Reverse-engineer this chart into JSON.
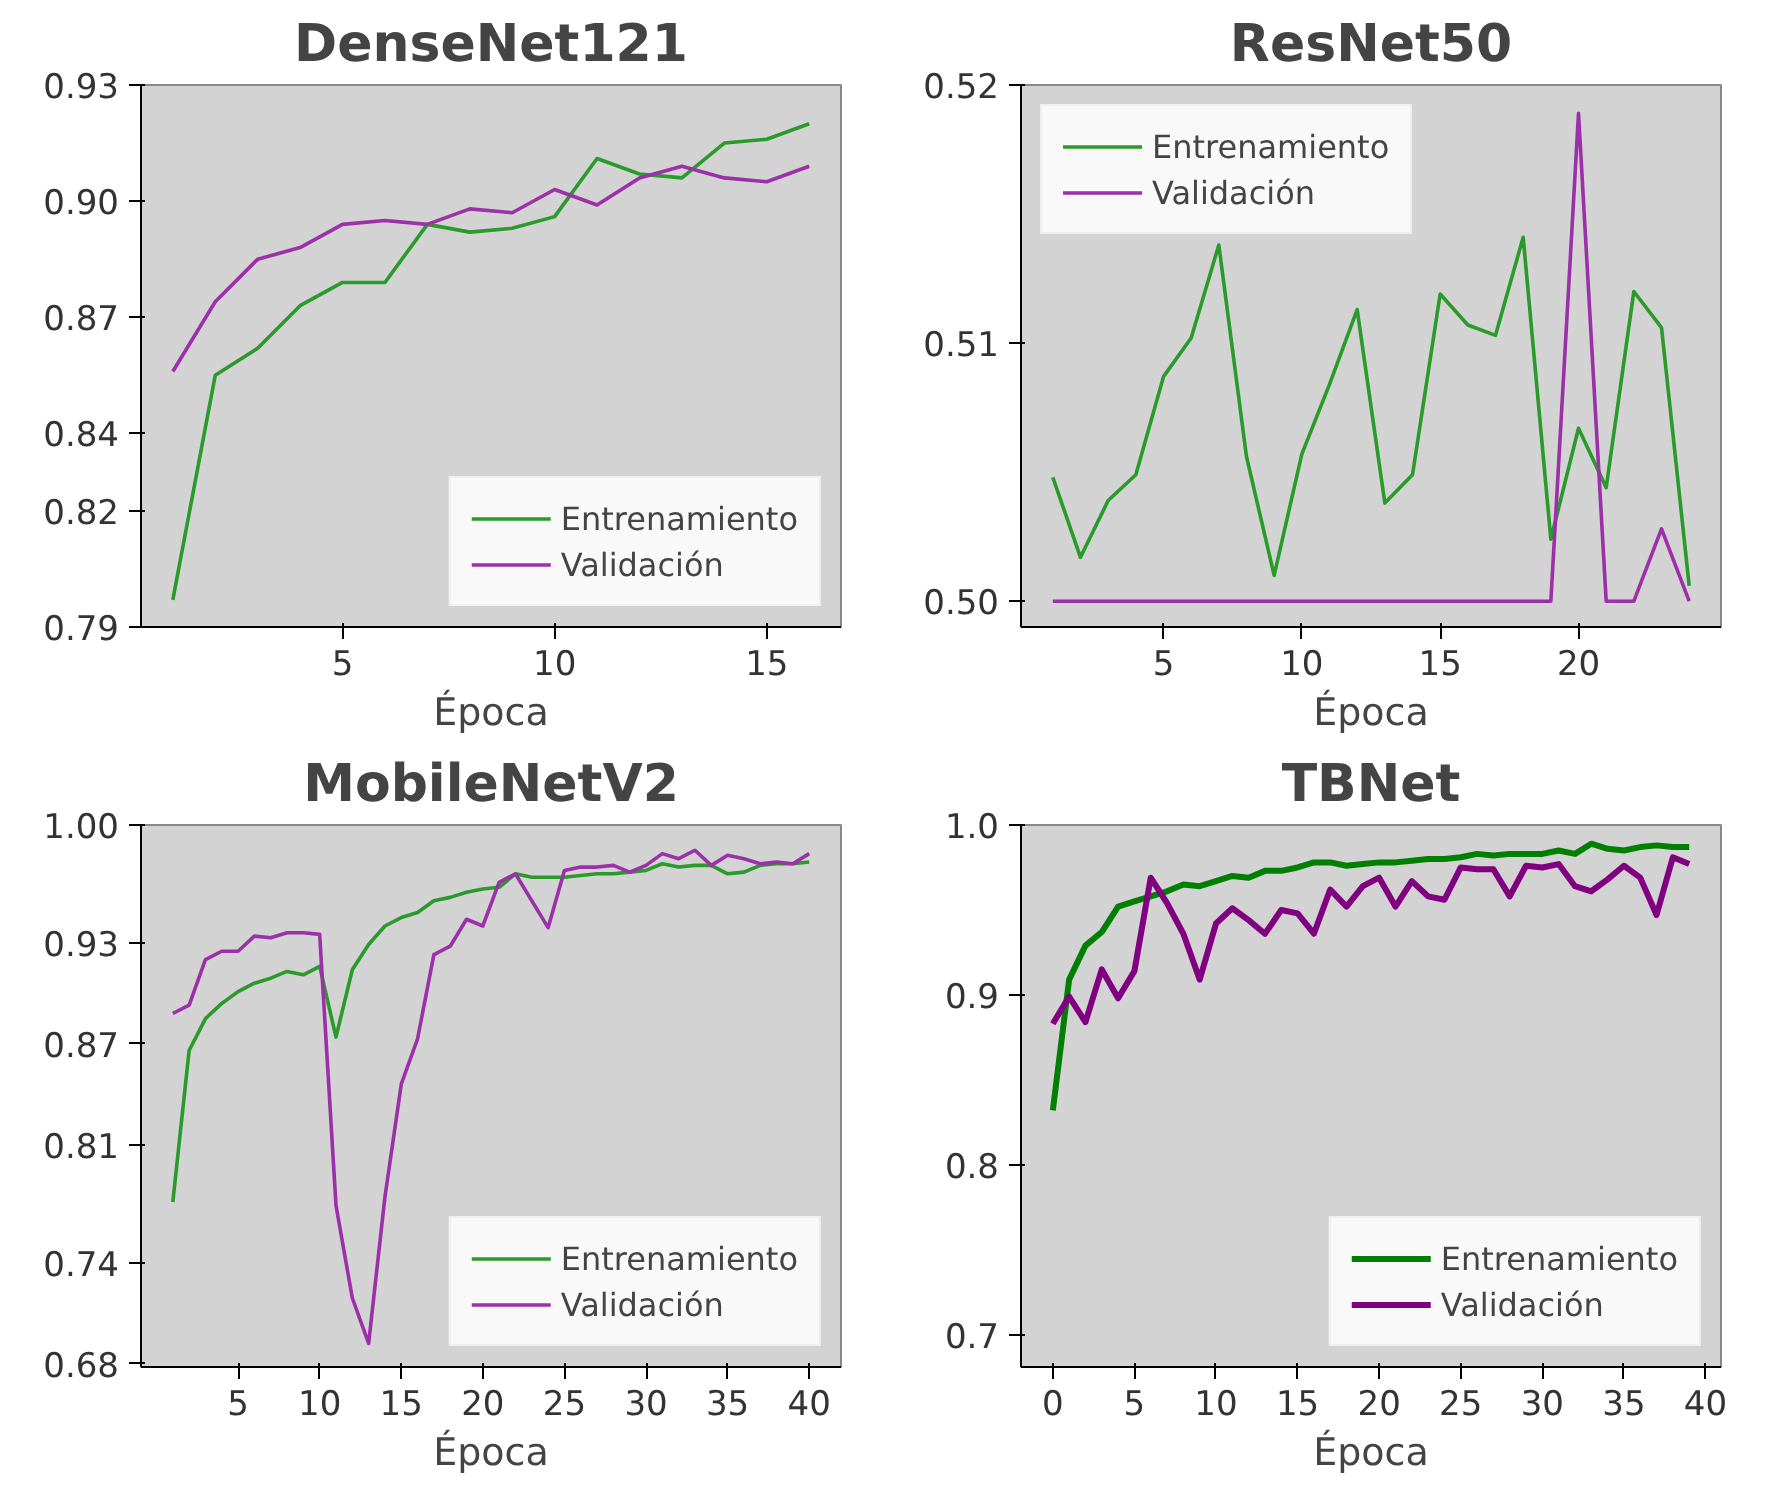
{
  "chart_data": [
    {
      "type": "line",
      "title": "DenseNet121",
      "xlabel": "Época",
      "xlim": [
        0.25,
        16.75
      ],
      "xticks": [
        5,
        10,
        15
      ],
      "ylim": [
        0.79,
        0.93
      ],
      "yticks": [
        0.79,
        0.82,
        0.84,
        0.87,
        {
          "value": 0.9,
          "label": "0.90"
        },
        {
          "value": 0.93,
          "label": "0.93"
        }
      ],
      "grid": false,
      "legend": "bottom right",
      "x": [
        1,
        2,
        3,
        4,
        5,
        6,
        7,
        8,
        9,
        10,
        11,
        12,
        13,
        14,
        15,
        16
      ],
      "series": [
        {
          "name": "Entrenamiento",
          "color": "#2a9a2a",
          "values": [
            0.797,
            0.855,
            0.862,
            0.873,
            0.879,
            0.879,
            0.894,
            0.892,
            0.893,
            0.896,
            0.911,
            0.907,
            0.906,
            0.915,
            0.916,
            0.92
          ]
        },
        {
          "name": "Validación",
          "color": "#9b30a8",
          "values": [
            0.856,
            0.874,
            0.885,
            0.888,
            0.894,
            0.895,
            0.894,
            0.898,
            0.897,
            0.903,
            0.899,
            0.906,
            0.909,
            0.906,
            0.905,
            0.909
          ]
        }
      ]
    },
    {
      "type": "line",
      "title": "ResNet50",
      "xlabel": "Época",
      "xlim": [
        -0.15,
        25.15
      ],
      "xticks": [
        5,
        10,
        15,
        20
      ],
      "ylim": [
        0.499,
        0.52
      ],
      "yticks": [
        {
          "value": 0.5,
          "label": "0.50"
        },
        0.51,
        0.52
      ],
      "grid": false,
      "legend": "top left",
      "x": [
        1,
        2,
        3,
        4,
        5,
        6,
        7,
        8,
        9,
        10,
        11,
        12,
        13,
        14,
        15,
        16,
        17,
        18,
        19,
        20,
        21,
        22,
        23,
        24
      ],
      "series": [
        {
          "name": "Entrenamiento",
          "color": "#2a9a2a",
          "values": [
            0.5048,
            0.5017,
            0.5039,
            0.5049,
            0.5087,
            0.5102,
            0.5138,
            0.5056,
            0.501,
            0.5057,
            0.5084,
            0.5113,
            0.5038,
            0.5049,
            0.5119,
            0.5107,
            0.5103,
            0.5141,
            0.5024,
            0.5067,
            0.5044,
            0.512,
            0.5106,
            0.5006
          ]
        },
        {
          "name": "Validación",
          "color": "#9b30a8",
          "values": [
            0.5,
            0.5,
            0.5,
            0.5,
            0.5,
            0.5,
            0.5,
            0.5,
            0.5,
            0.5,
            0.5,
            0.5,
            0.5,
            0.5,
            0.5,
            0.5,
            0.5,
            0.5,
            0.5,
            0.5189,
            0.5,
            0.5,
            0.5028,
            0.5
          ]
        }
      ]
    },
    {
      "type": "line",
      "title": "MobileNetV2",
      "xlabel": "Época",
      "xlim": [
        -0.95,
        41.95
      ],
      "xticks": [
        5,
        10,
        15,
        20,
        25,
        30,
        35,
        40
      ],
      "ylim": [
        0.678,
        1.0
      ],
      "yticks": [
        0.68,
        0.74,
        0.81,
        0.87,
        0.93,
        {
          "value": 1.0,
          "label": "1.00"
        }
      ],
      "grid": false,
      "legend": "bottom right",
      "x": [
        1,
        2,
        3,
        4,
        5,
        6,
        7,
        8,
        9,
        10,
        11,
        12,
        13,
        14,
        15,
        16,
        17,
        18,
        19,
        20,
        21,
        22,
        23,
        24,
        25,
        26,
        27,
        28,
        29,
        30,
        31,
        32,
        33,
        34,
        35,
        36,
        37,
        38,
        39,
        40
      ],
      "series": [
        {
          "name": "Entrenamiento",
          "color": "#2a9a2a",
          "values": [
            0.776,
            0.866,
            0.885,
            0.894,
            0.901,
            0.906,
            0.909,
            0.913,
            0.911,
            0.916,
            0.874,
            0.914,
            0.929,
            0.94,
            0.945,
            0.948,
            0.955,
            0.957,
            0.96,
            0.962,
            0.963,
            0.971,
            0.969,
            0.969,
            0.969,
            0.97,
            0.971,
            0.971,
            0.972,
            0.973,
            0.977,
            0.975,
            0.976,
            0.976,
            0.971,
            0.972,
            0.976,
            0.977,
            0.977,
            0.978
          ]
        },
        {
          "name": "Validación",
          "color": "#9b30a8",
          "values": [
            0.888,
            0.893,
            0.92,
            0.925,
            0.925,
            0.934,
            0.933,
            0.936,
            0.936,
            0.935,
            0.774,
            0.719,
            0.692,
            0.779,
            0.846,
            0.873,
            0.923,
            0.928,
            0.944,
            0.94,
            0.966,
            0.971,
            0.955,
            0.939,
            0.973,
            0.975,
            0.975,
            0.976,
            0.972,
            0.976,
            0.983,
            0.98,
            0.985,
            0.976,
            0.982,
            0.98,
            0.977,
            0.978,
            0.977,
            0.983
          ]
        }
      ]
    },
    {
      "type": "line",
      "title": "TBNet",
      "xlabel": "Época",
      "xlim": [
        -1.95,
        40.95
      ],
      "xticks": [
        0,
        5,
        10,
        15,
        20,
        25,
        30,
        35,
        40
      ],
      "ylim": [
        0.681,
        1.0
      ],
      "yticks": [
        0.7,
        0.8,
        0.9,
        {
          "value": 1.0,
          "label": "1.0"
        }
      ],
      "grid": false,
      "legend": "bottom right",
      "x": [
        0,
        1,
        2,
        3,
        4,
        5,
        6,
        7,
        8,
        9,
        10,
        11,
        12,
        13,
        14,
        15,
        16,
        17,
        18,
        19,
        20,
        21,
        22,
        23,
        24,
        25,
        26,
        27,
        28,
        29,
        30,
        31,
        32,
        33,
        34,
        35,
        36,
        37,
        38,
        39
      ],
      "series": [
        {
          "name": "Entrenamiento",
          "color": "#008000",
          "values": [
            0.832,
            0.909,
            0.929,
            0.937,
            0.952,
            0.955,
            0.958,
            0.961,
            0.965,
            0.964,
            0.967,
            0.97,
            0.969,
            0.973,
            0.973,
            0.975,
            0.978,
            0.978,
            0.976,
            0.977,
            0.978,
            0.978,
            0.979,
            0.98,
            0.98,
            0.981,
            0.983,
            0.982,
            0.983,
            0.983,
            0.983,
            0.985,
            0.983,
            0.989,
            0.986,
            0.985,
            0.987,
            0.988,
            0.987,
            0.987
          ]
        },
        {
          "name": "Validación",
          "color": "#800080",
          "values": [
            0.883,
            0.899,
            0.884,
            0.915,
            0.898,
            0.914,
            0.969,
            0.954,
            0.936,
            0.909,
            0.942,
            0.951,
            0.944,
            0.936,
            0.95,
            0.948,
            0.936,
            0.962,
            0.952,
            0.964,
            0.969,
            0.952,
            0.967,
            0.958,
            0.956,
            0.975,
            0.974,
            0.974,
            0.958,
            0.976,
            0.975,
            0.977,
            0.964,
            0.961,
            0.968,
            0.976,
            0.969,
            0.947,
            0.981,
            0.977
          ]
        }
      ]
    }
  ]
}
